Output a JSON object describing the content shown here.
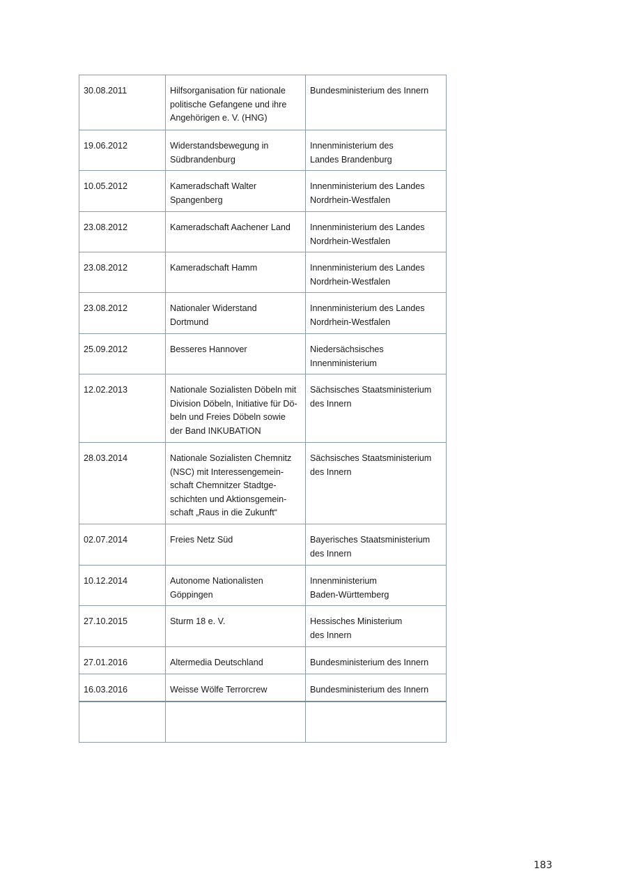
{
  "table": {
    "rows": [
      {
        "date": "30.08.2011",
        "organization": "Hilfsorganisation für nationale\npolitische Gefangene und ihre\nAngehörigen e. V. (HNG)",
        "authority": "Bundesministerium des Innern"
      },
      {
        "date": "19.06.2012",
        "organization": "Widerstandsbewegung in\nSüdbrandenburg",
        "authority": "Innenministerium des\nLandes Brandenburg"
      },
      {
        "date": "10.05.2012",
        "organization": "Kameradschaft Walter\nSpangenberg",
        "authority": "Innenministerium des Landes\nNordrhein-Westfalen"
      },
      {
        "date": "23.08.2012",
        "organization": "Kameradschaft Aachener Land",
        "authority": "Innenministerium des Landes\nNordrhein-Westfalen"
      },
      {
        "date": "23.08.2012",
        "organization": "Kameradschaft Hamm",
        "authority": "Innenministerium des Landes\nNordrhein-Westfalen"
      },
      {
        "date": "23.08.2012",
        "organization": "Nationaler Widerstand\nDortmund",
        "authority": "Innenministerium des Landes\nNordrhein-Westfalen"
      },
      {
        "date": "25.09.2012",
        "organization": "Besseres Hannover",
        "authority": "Niedersächsisches\nInnenministerium"
      },
      {
        "date": "12.02.2013",
        "organization": "Nationale Sozialisten Döbeln mit\nDivision Döbeln, Initiative für Dö-\nbeln und Freies Döbeln sowie\nder Band INKUBATION",
        "authority": "Sächsisches Staatsministerium\ndes Innern"
      },
      {
        "date": "28.03.2014",
        "organization": "Nationale Sozialisten Chemnitz\n(NSC) mit Interessengemein-\nschaft Chemnitzer Stadtge-\nschichten und Aktionsgemein-\nschaft „Raus in die Zukunft“",
        "authority": "Sächsisches Staatsministerium\ndes Innern"
      },
      {
        "date": "02.07.2014",
        "organization": "Freies Netz Süd",
        "authority": "Bayerisches Staatsministerium\ndes Innern"
      },
      {
        "date": "10.12.2014",
        "organization": "Autonome Nationalisten\nGöppingen",
        "authority": "Innenministerium\nBaden-Württemberg"
      },
      {
        "date": "27.10.2015",
        "organization": "Sturm 18 e. V.",
        "authority": "Hessisches Ministerium\ndes Innern"
      },
      {
        "date": "27.01.2016",
        "organization": "Altermedia Deutschland",
        "authority": "Bundesministerium des Innern"
      },
      {
        "date": "16.03.2016",
        "organization": "Weisse Wölfe Terrorcrew",
        "authority": "Bundesministerium des Innern"
      },
      {
        "date": "",
        "organization": "",
        "authority": ""
      }
    ]
  },
  "page_number": "183"
}
